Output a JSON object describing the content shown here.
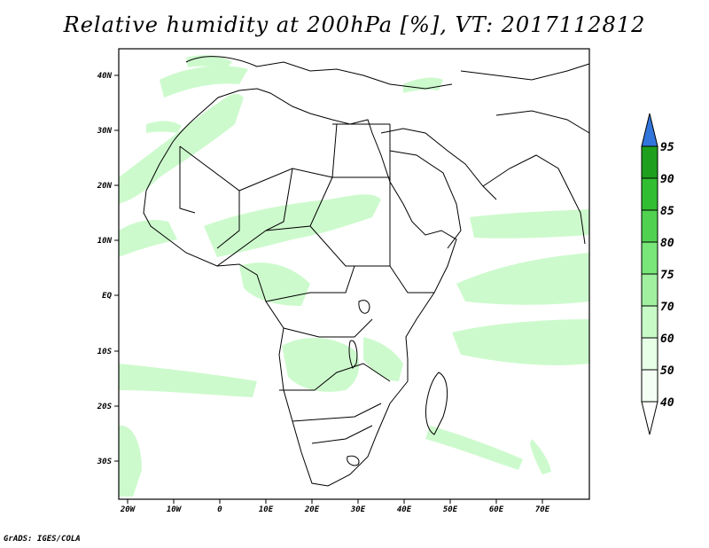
{
  "title": "Relative humidity at 200hPa [%], VT: 2017112812",
  "credit": "GrADS: IGES/COLA",
  "map": {
    "lat_labels": [
      "40N",
      "30N",
      "20N",
      "10N",
      "EQ",
      "10S",
      "20S",
      "30S"
    ],
    "lon_labels": [
      "20W",
      "10W",
      "0",
      "10E",
      "20E",
      "30E",
      "40E",
      "50E",
      "60E",
      "70E"
    ],
    "lon_range": [
      -22,
      80
    ],
    "lat_range": [
      -37,
      46
    ]
  },
  "colorbar": {
    "levels": [
      "40",
      "50",
      "60",
      "70",
      "75",
      "80",
      "85",
      "90",
      "95"
    ],
    "colors": [
      "#ffffff",
      "#e6ffe6",
      "#c8fac8",
      "#a0f0a0",
      "#78e678",
      "#50d250",
      "#32be32",
      "#1ea01e",
      "#3276dc"
    ]
  },
  "colors": {
    "land_outline": "#000000",
    "humid_fill": "#c8fac8"
  }
}
